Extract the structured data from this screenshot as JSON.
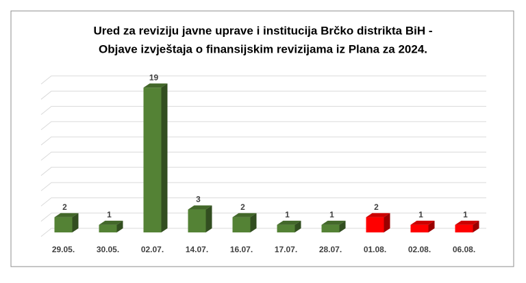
{
  "chart_data": {
    "type": "bar3d",
    "title": "Ured za reviziju javne uprave i institucija Brčko distrikta BiH -",
    "subtitle": "Objave izvještaja o finansijskim revizijama iz Plana za 2024.",
    "categories": [
      "29.05.",
      "30.05.",
      "02.07.",
      "14.07.",
      "16.07.",
      "17.07.",
      "28.07.",
      "01.08.",
      "02.08.",
      "06.08."
    ],
    "values": [
      2,
      1,
      19,
      3,
      2,
      1,
      1,
      2,
      1,
      1
    ],
    "colors": [
      "#548235",
      "#548235",
      "#548235",
      "#548235",
      "#548235",
      "#548235",
      "#548235",
      "#ff0000",
      "#ff0000",
      "#ff0000"
    ],
    "ylim": [
      0,
      20
    ],
    "yticks": [
      0,
      2,
      4,
      6,
      8,
      10,
      12,
      14,
      16,
      18,
      20
    ],
    "grid": true
  }
}
